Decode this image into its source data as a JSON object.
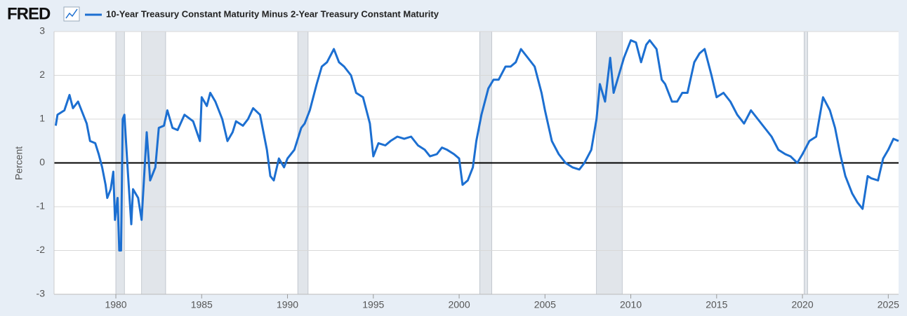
{
  "chart_data": {
    "type": "line",
    "logo": "FRED",
    "title": "10-Year Treasury Constant Maturity Minus 2-Year Treasury Constant Maturity",
    "ylabel": "Percent",
    "xlim": [
      1976.4,
      2025.6
    ],
    "ylim": [
      -3,
      3
    ],
    "xticks": [
      1980,
      1985,
      1990,
      1995,
      2000,
      2005,
      2010,
      2015,
      2020,
      2025
    ],
    "yticks": [
      -3,
      -2,
      -1,
      0,
      1,
      2,
      3
    ],
    "grid": true,
    "recession_color": "#e1e5ea",
    "recessions": [
      [
        1980.0,
        1980.5
      ],
      [
        1981.5,
        1982.9
      ],
      [
        1990.6,
        1991.2
      ],
      [
        2001.2,
        2001.9
      ],
      [
        2008.0,
        2009.5
      ],
      [
        2020.1,
        2020.3
      ]
    ],
    "series": [
      {
        "name": "10-Year Treasury Constant Maturity Minus 2-Year Treasury Constant Maturity",
        "color": "#1c6fd1",
        "x": [
          1976.5,
          1976.6,
          1977.0,
          1977.3,
          1977.5,
          1977.8,
          1978.0,
          1978.3,
          1978.5,
          1978.8,
          1979.0,
          1979.2,
          1979.4,
          1979.5,
          1979.7,
          1979.85,
          1979.95,
          1980.1,
          1980.2,
          1980.3,
          1980.4,
          1980.5,
          1980.7,
          1980.9,
          1981.0,
          1981.3,
          1981.5,
          1981.8,
          1982.0,
          1982.3,
          1982.5,
          1982.8,
          1983.0,
          1983.3,
          1983.6,
          1984.0,
          1984.5,
          1984.9,
          1985.0,
          1985.3,
          1985.5,
          1985.8,
          1986.2,
          1986.5,
          1986.8,
          1987.0,
          1987.4,
          1987.7,
          1988.0,
          1988.4,
          1988.8,
          1989.0,
          1989.2,
          1989.5,
          1989.8,
          1990.0,
          1990.4,
          1990.8,
          1991.0,
          1991.3,
          1991.7,
          1992.0,
          1992.3,
          1992.7,
          1993.0,
          1993.3,
          1993.7,
          1994.0,
          1994.4,
          1994.8,
          1995.0,
          1995.3,
          1995.7,
          1996.0,
          1996.4,
          1996.8,
          1997.2,
          1997.6,
          1998.0,
          1998.3,
          1998.7,
          1999.0,
          1999.3,
          1999.7,
          2000.0,
          2000.2,
          2000.5,
          2000.8,
          2001.0,
          2001.3,
          2001.7,
          2002.0,
          2002.3,
          2002.7,
          2003.0,
          2003.3,
          2003.6,
          2004.0,
          2004.4,
          2004.8,
          2005.0,
          2005.4,
          2005.8,
          2006.2,
          2006.6,
          2007.0,
          2007.3,
          2007.7,
          2008.0,
          2008.2,
          2008.5,
          2008.8,
          2009.0,
          2009.3,
          2009.6,
          2010.0,
          2010.3,
          2010.6,
          2010.9,
          2011.1,
          2011.5,
          2011.8,
          2012.0,
          2012.4,
          2012.7,
          2013.0,
          2013.3,
          2013.7,
          2014.0,
          2014.3,
          2014.7,
          2015.0,
          2015.4,
          2015.8,
          2016.2,
          2016.6,
          2017.0,
          2017.4,
          2017.8,
          2018.2,
          2018.6,
          2019.0,
          2019.3,
          2019.7,
          2020.0,
          2020.4,
          2020.8,
          2021.2,
          2021.6,
          2021.9,
          2022.2,
          2022.5,
          2022.9,
          2023.2,
          2023.5,
          2023.8,
          2024.0,
          2024.4,
          2024.7,
          2025.0,
          2025.3,
          2025.6
        ],
        "values": [
          0.85,
          1.1,
          1.2,
          1.55,
          1.25,
          1.4,
          1.2,
          0.9,
          0.5,
          0.45,
          0.2,
          -0.1,
          -0.5,
          -0.8,
          -0.6,
          -0.2,
          -1.3,
          -0.8,
          -2.0,
          -2.0,
          1.0,
          1.1,
          -0.2,
          -1.4,
          -0.6,
          -0.8,
          -1.3,
          0.7,
          -0.4,
          -0.1,
          0.8,
          0.85,
          1.2,
          0.8,
          0.75,
          1.1,
          0.95,
          0.5,
          1.5,
          1.3,
          1.6,
          1.4,
          1.0,
          0.5,
          0.7,
          0.95,
          0.85,
          1.0,
          1.25,
          1.1,
          0.3,
          -0.3,
          -0.4,
          0.1,
          -0.1,
          0.1,
          0.3,
          0.8,
          0.9,
          1.2,
          1.8,
          2.2,
          2.3,
          2.6,
          2.3,
          2.2,
          2.0,
          1.6,
          1.5,
          0.9,
          0.15,
          0.45,
          0.4,
          0.5,
          0.6,
          0.55,
          0.6,
          0.4,
          0.3,
          0.15,
          0.2,
          0.35,
          0.3,
          0.2,
          0.1,
          -0.5,
          -0.4,
          -0.1,
          0.5,
          1.1,
          1.7,
          1.9,
          1.9,
          2.2,
          2.2,
          2.3,
          2.6,
          2.4,
          2.2,
          1.6,
          1.2,
          0.5,
          0.2,
          0.0,
          -0.1,
          -0.15,
          0.0,
          0.3,
          1.0,
          1.8,
          1.4,
          2.4,
          1.6,
          2.0,
          2.4,
          2.8,
          2.75,
          2.3,
          2.7,
          2.8,
          2.6,
          1.9,
          1.8,
          1.4,
          1.4,
          1.6,
          1.6,
          2.3,
          2.5,
          2.6,
          2.0,
          1.5,
          1.6,
          1.4,
          1.1,
          0.9,
          1.2,
          1.0,
          0.8,
          0.6,
          0.3,
          0.2,
          0.15,
          0.0,
          0.2,
          0.5,
          0.6,
          1.5,
          1.2,
          0.8,
          0.2,
          -0.3,
          -0.7,
          -0.9,
          -1.05,
          -0.3,
          -0.35,
          -0.4,
          0.1,
          0.3,
          0.55,
          0.5
        ]
      }
    ]
  }
}
